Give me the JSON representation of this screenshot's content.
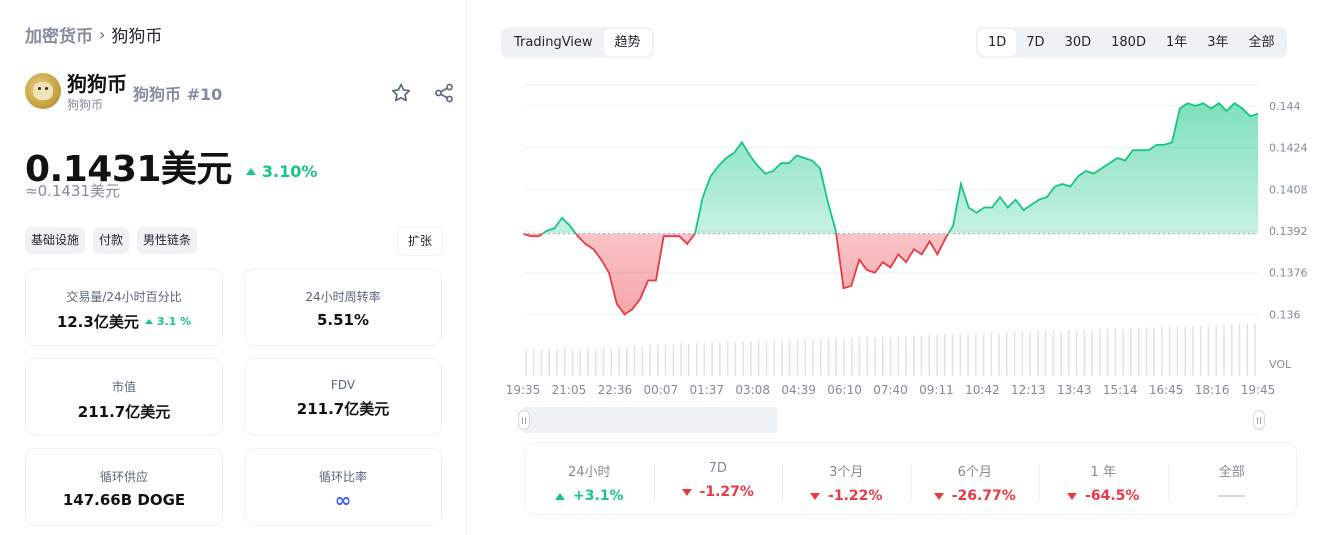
{
  "breadcrumb": {
    "root": "加密货币",
    "separator": "›",
    "current": "狗狗币"
  },
  "coin": {
    "name": "狗狗币",
    "subname": "狗狗币",
    "rank": "狗狗币 #10",
    "logo_icon": "dogecoin-logo",
    "price": "0.1431美元",
    "change_24h": "3.10%",
    "change_direction": "up",
    "price_approx": "≈0.1431美元"
  },
  "tags": [
    {
      "label": "基础设施"
    },
    {
      "label": "付款"
    },
    {
      "label": "男性链条"
    }
  ],
  "expand_label": "扩张",
  "stats": {
    "volume": {
      "label": "交易量/24小时百分比",
      "value": "12.3亿美元",
      "sub": "3.1 %"
    },
    "turnover": {
      "label": "24小时周转率",
      "value": "5.51%"
    },
    "market_cap": {
      "label": "市值",
      "value": "211.7亿美元"
    },
    "fdv": {
      "label": "FDV",
      "value": "211.7亿美元"
    },
    "circulating_supply": {
      "label": "循环供应",
      "value": "147.66B DOGE"
    },
    "circulating_ratio": {
      "label": "循环比率",
      "value": "∞"
    }
  },
  "chart_toggle": {
    "tradingview": "TradingView",
    "trend": "趋势"
  },
  "range_tabs": [
    "1D",
    "7D",
    "30D",
    "180D",
    "1年",
    "3年",
    "全部"
  ],
  "active_range": "1D",
  "colors": {
    "up": "#16c784",
    "down": "#ea3943",
    "accent": "#3861fb"
  },
  "chart_data": {
    "type": "area",
    "baseline": 0.1391,
    "y_ticks": [
      "0.144",
      "0.1424",
      "0.1408",
      "0.1392",
      "0.1376",
      "0.136"
    ],
    "y_tick_values": [
      0.144,
      0.1424,
      0.1408,
      0.1392,
      0.1376,
      0.136
    ],
    "ylim": [
      0.1354,
      0.1448
    ],
    "volume_label": "VOL",
    "x_ticks": [
      "19:35",
      "21:05",
      "22:36",
      "00:07",
      "01:37",
      "03:08",
      "04:39",
      "06:10",
      "07:40",
      "09:11",
      "10:42",
      "12:13",
      "13:43",
      "15:14",
      "16:45",
      "18:16",
      "19:45"
    ],
    "values": [
      0.1391,
      0.139,
      0.139,
      0.1392,
      0.1393,
      0.1397,
      0.1394,
      0.139,
      0.1387,
      0.1385,
      0.1381,
      0.1376,
      0.1364,
      0.136,
      0.1362,
      0.1366,
      0.1373,
      0.1373,
      0.139,
      0.139,
      0.139,
      0.1387,
      0.1391,
      0.1405,
      0.1413,
      0.1417,
      0.142,
      0.1422,
      0.1426,
      0.1421,
      0.1417,
      0.1414,
      0.1415,
      0.1418,
      0.1418,
      0.1421,
      0.142,
      0.1419,
      0.1416,
      0.1403,
      0.1392,
      0.137,
      0.1371,
      0.1381,
      0.1377,
      0.1376,
      0.138,
      0.1378,
      0.1383,
      0.138,
      0.1385,
      0.1383,
      0.1388,
      0.1383,
      0.1389,
      0.1394,
      0.141,
      0.1401,
      0.1399,
      0.1401,
      0.1401,
      0.1405,
      0.1401,
      0.1404,
      0.14,
      0.1402,
      0.1404,
      0.1405,
      0.1409,
      0.141,
      0.1409,
      0.1413,
      0.1415,
      0.1414,
      0.1416,
      0.1418,
      0.142,
      0.1419,
      0.1423,
      0.1423,
      0.1423,
      0.1425,
      0.1425,
      0.1426,
      0.1439,
      0.1441,
      0.144,
      0.1441,
      0.1439,
      0.1441,
      0.1438,
      0.1441,
      0.1439,
      0.1436,
      0.1437
    ],
    "volumes": [
      0.5,
      0.52,
      0.5,
      0.53,
      0.5,
      0.55,
      0.52,
      0.5,
      0.54,
      0.51,
      0.55,
      0.53,
      0.56,
      0.55,
      0.58,
      0.57,
      0.6,
      0.6,
      0.62,
      0.61,
      0.63,
      0.62,
      0.64,
      0.63,
      0.65,
      0.64,
      0.66,
      0.65,
      0.67,
      0.66,
      0.68,
      0.67,
      0.69,
      0.68,
      0.7,
      0.7,
      0.71,
      0.7,
      0.72,
      0.72,
      0.73,
      0.72,
      0.74,
      0.74,
      0.75,
      0.74,
      0.76,
      0.75,
      0.77,
      0.76,
      0.78,
      0.77,
      0.79,
      0.78,
      0.8,
      0.8,
      0.81,
      0.8,
      0.82,
      0.82,
      0.83,
      0.82,
      0.84,
      0.84,
      0.85,
      0.84,
      0.86,
      0.86,
      0.87,
      0.86,
      0.88,
      0.88,
      0.89,
      0.88,
      0.9,
      0.9,
      0.91,
      0.9,
      0.92,
      0.92,
      0.93,
      0.93,
      0.94,
      0.94,
      0.95,
      0.95,
      0.96,
      0.96,
      0.97,
      0.97,
      0.98,
      0.98,
      0.99,
      0.99,
      1.0
    ]
  },
  "performance": [
    {
      "label": "24小时",
      "value": "+3.1%",
      "direction": "up"
    },
    {
      "label": "7D",
      "value": "-1.27%",
      "direction": "down"
    },
    {
      "label": "3个月",
      "value": "-1.22%",
      "direction": "down"
    },
    {
      "label": "6个月",
      "value": "-26.77%",
      "direction": "down"
    },
    {
      "label": "1 年",
      "value": "-64.5%",
      "direction": "down"
    },
    {
      "label": "全部",
      "value": "——",
      "direction": "none"
    }
  ]
}
